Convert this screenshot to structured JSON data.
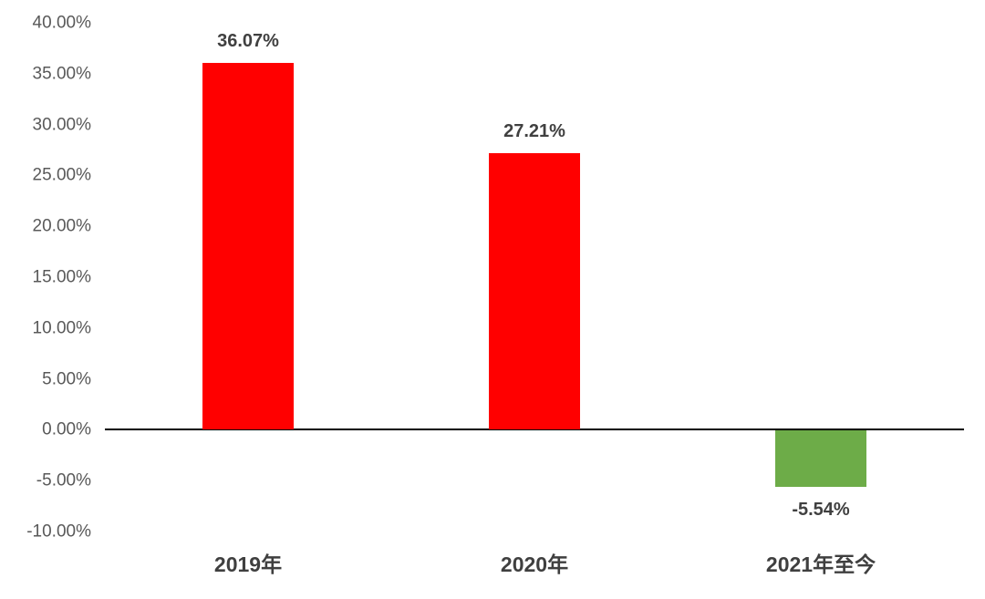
{
  "chart_data": {
    "type": "bar",
    "title": "",
    "xlabel": "",
    "ylabel": "",
    "categories": [
      "2019年",
      "2020年",
      "2021年至今"
    ],
    "values": [
      36.07,
      27.21,
      -5.54
    ],
    "data_labels": [
      "36.07%",
      "27.21%",
      "-5.54%"
    ],
    "bar_colors": [
      "#ff0000",
      "#ff0000",
      "#6dac48"
    ],
    "ylim": [
      -10,
      40
    ],
    "ytick_step": 5,
    "ytick_labels": [
      "40.00%",
      "35.00%",
      "30.00%",
      "25.00%",
      "20.00%",
      "15.00%",
      "10.00%",
      "5.00%",
      "0.00%",
      "-5.00%",
      "-10.00%"
    ],
    "grid": false,
    "legend": "none",
    "colors": {
      "axis_line": "#000000",
      "ytick_text": "#595959",
      "value_label_text": "#404040",
      "category_label_text": "#3f3f3f",
      "background": "#ffffff"
    }
  }
}
